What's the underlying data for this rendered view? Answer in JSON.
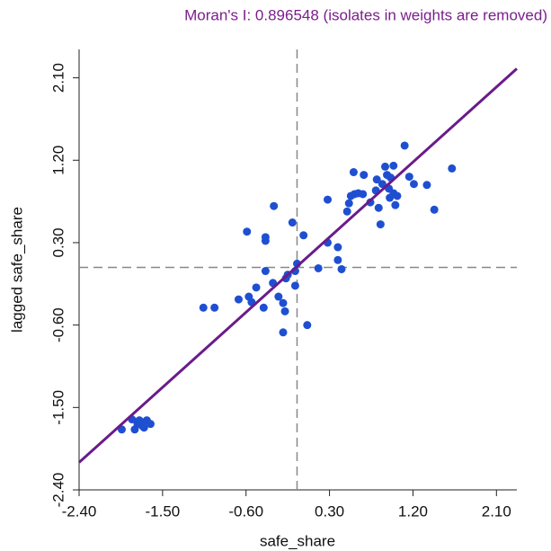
{
  "chart_data": {
    "type": "scatter",
    "title": "Moran's I: 0.896548 (isolates in weights are removed)",
    "x_label": "safe_share",
    "y_label": "lagged safe_share",
    "xlim": [
      -2.4,
      2.32
    ],
    "ylim": [
      -2.4,
      2.41
    ],
    "xticks": [
      {
        "value": -2.4,
        "label": "-2.40"
      },
      {
        "value": -1.5,
        "label": "-1.50"
      },
      {
        "value": -0.6,
        "label": "-0.60"
      },
      {
        "value": 0.3,
        "label": "0.30"
      },
      {
        "value": 1.2,
        "label": "1.20"
      },
      {
        "value": 2.1,
        "label": "2.10"
      }
    ],
    "yticks": [
      {
        "value": -2.4,
        "label": "-2.40"
      },
      {
        "value": -1.5,
        "label": "-1.50"
      },
      {
        "value": -0.6,
        "label": "-0.60"
      },
      {
        "value": 0.3,
        "label": "0.30"
      },
      {
        "value": 1.2,
        "label": "1.20"
      },
      {
        "value": 2.1,
        "label": "2.10"
      }
    ],
    "x": [
      -1.94,
      -1.83,
      -1.8,
      -1.77,
      -1.73,
      -1.7,
      -1.67,
      -1.63,
      -1.75,
      -1.72,
      -1.06,
      -0.94,
      -0.68,
      -0.57,
      -0.54,
      -0.49,
      -0.59,
      -0.39,
      -0.39,
      -0.39,
      -0.41,
      -0.3,
      -0.31,
      -0.25,
      -0.2,
      -0.17,
      -0.18,
      -0.2,
      -0.15,
      -0.1,
      -0.07,
      -0.07,
      -0.05,
      0.02,
      0.06,
      0.18,
      0.28,
      0.28,
      0.39,
      0.39,
      0.43,
      0.49,
      0.51,
      0.56,
      0.57,
      0.53,
      0.61,
      0.66,
      0.67,
      0.74,
      0.8,
      0.83,
      0.85,
      0.9,
      0.92,
      0.94,
      0.96,
      0.99,
      0.99,
      1.01,
      1.03,
      1.11,
      1.16,
      1.21,
      1.35,
      1.43,
      1.62,
      0.95,
      0.87,
      0.81
    ],
    "values": [
      -1.74,
      -1.63,
      -1.74,
      -1.68,
      -1.66,
      -1.72,
      -1.64,
      -1.68,
      -1.64,
      -1.7,
      -0.41,
      -0.41,
      -0.32,
      -0.29,
      -0.35,
      -0.19,
      0.42,
      0.36,
      0.32,
      -0.01,
      -0.41,
      0.7,
      -0.14,
      -0.29,
      -0.36,
      -0.09,
      -0.45,
      -0.68,
      -0.05,
      0.52,
      -0.17,
      -0.01,
      0.07,
      0.38,
      -0.6,
      0.02,
      0.3,
      0.77,
      0.25,
      0.11,
      0.01,
      0.64,
      0.73,
      1.07,
      0.83,
      0.81,
      0.84,
      0.83,
      1.04,
      0.74,
      0.87,
      0.68,
      0.5,
      1.13,
      1.04,
      0.89,
      1.01,
      1.14,
      0.84,
      0.71,
      0.81,
      1.36,
      1.02,
      0.94,
      0.93,
      0.66,
      1.11,
      0.79,
      0.94,
      0.99
    ],
    "color": "#1f4fd1",
    "fit_line": {
      "x": [
        -2.4,
        2.32
      ],
      "y": [
        -2.1,
        2.2
      ],
      "color": "#6a1b8a"
    },
    "x_mean": -0.05,
    "y_mean": 0.03
  }
}
